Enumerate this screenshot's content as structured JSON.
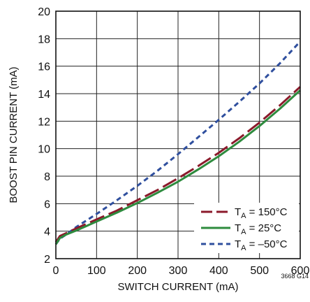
{
  "chart_data": {
    "type": "line",
    "xlabel": "SWITCH CURRENT (mA)",
    "ylabel": "BOOST PIN CURRENT (mA)",
    "xlim": [
      0,
      600
    ],
    "ylim": [
      2,
      20
    ],
    "xticks": [
      0,
      100,
      200,
      300,
      400,
      500,
      600
    ],
    "yticks": [
      2,
      4,
      6,
      8,
      10,
      12,
      14,
      16,
      18,
      20
    ],
    "grid": true,
    "legend_position": "bottom-right",
    "figure_id": "3668 G14",
    "series": [
      {
        "name": "TA = 150°C",
        "legend": {
          "prefix": "T",
          "sub": "A",
          "suffix": " = 150°C"
        },
        "color": "#8b1a2b",
        "dash": "long-dash",
        "x": [
          0,
          10,
          25,
          50,
          100,
          150,
          200,
          250,
          300,
          350,
          400,
          450,
          500,
          550,
          600
        ],
        "y": [
          3.2,
          3.65,
          3.85,
          4.2,
          4.85,
          5.5,
          6.25,
          7.0,
          7.85,
          8.75,
          9.7,
          10.75,
          11.9,
          13.15,
          14.5
        ]
      },
      {
        "name": "TA = 25°C",
        "legend": {
          "prefix": "T",
          "sub": "A",
          "suffix": " = 25°C"
        },
        "color": "#2e8b3e",
        "dash": "solid",
        "x": [
          0,
          10,
          25,
          50,
          100,
          150,
          200,
          250,
          300,
          350,
          400,
          450,
          500,
          550,
          600
        ],
        "y": [
          3.05,
          3.5,
          3.75,
          4.05,
          4.7,
          5.35,
          6.05,
          6.8,
          7.6,
          8.5,
          9.45,
          10.5,
          11.65,
          12.9,
          14.25
        ]
      },
      {
        "name": "TA = –50°C",
        "legend": {
          "prefix": "T",
          "sub": "A",
          "suffix": " = –50°C"
        },
        "color": "#2f4f9e",
        "dash": "short-dash",
        "x": [
          0,
          10,
          25,
          50,
          100,
          150,
          200,
          250,
          300,
          350,
          400,
          450,
          500,
          550,
          600
        ],
        "y": [
          3.05,
          3.45,
          3.75,
          4.3,
          5.25,
          6.25,
          7.3,
          8.4,
          9.6,
          10.85,
          12.1,
          13.4,
          14.75,
          16.2,
          17.8
        ]
      }
    ]
  }
}
